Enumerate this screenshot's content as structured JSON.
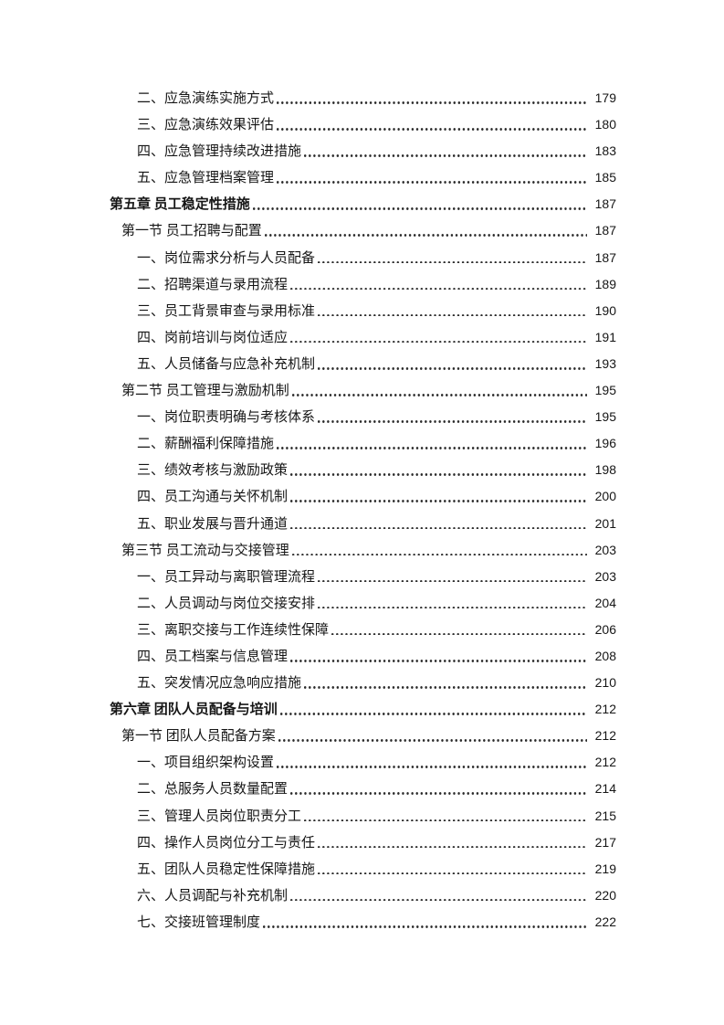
{
  "page": {
    "background_color": "#ffffff",
    "text_color": "#161616"
  },
  "toc": {
    "entries": [
      {
        "level": 3,
        "label": "二、应急演练实施方式",
        "page": "179"
      },
      {
        "level": 3,
        "label": "三、应急演练效果评估",
        "page": "180"
      },
      {
        "level": 3,
        "label": "四、应急管理持续改进措施",
        "page": "183"
      },
      {
        "level": 3,
        "label": "五、应急管理档案管理",
        "page": "185"
      },
      {
        "level": 1,
        "label": "第五章 员工稳定性措施",
        "page": "187"
      },
      {
        "level": 2,
        "label": "第一节 员工招聘与配置",
        "page": "187"
      },
      {
        "level": 3,
        "label": "一、岗位需求分析与人员配备",
        "page": "187"
      },
      {
        "level": 3,
        "label": "二、招聘渠道与录用流程",
        "page": "189"
      },
      {
        "level": 3,
        "label": "三、员工背景审查与录用标准",
        "page": "190"
      },
      {
        "level": 3,
        "label": "四、岗前培训与岗位适应",
        "page": "191"
      },
      {
        "level": 3,
        "label": "五、人员储备与应急补充机制",
        "page": "193"
      },
      {
        "level": 2,
        "label": "第二节 员工管理与激励机制",
        "page": "195"
      },
      {
        "level": 3,
        "label": "一、岗位职责明确与考核体系",
        "page": "195"
      },
      {
        "level": 3,
        "label": "二、薪酬福利保障措施",
        "page": "196"
      },
      {
        "level": 3,
        "label": "三、绩效考核与激励政策",
        "page": "198"
      },
      {
        "level": 3,
        "label": "四、员工沟通与关怀机制",
        "page": "200"
      },
      {
        "level": 3,
        "label": "五、职业发展与晋升通道",
        "page": "201"
      },
      {
        "level": 2,
        "label": "第三节 员工流动与交接管理",
        "page": "203"
      },
      {
        "level": 3,
        "label": "一、员工异动与离职管理流程",
        "page": "203"
      },
      {
        "level": 3,
        "label": "二、人员调动与岗位交接安排",
        "page": "204"
      },
      {
        "level": 3,
        "label": "三、离职交接与工作连续性保障",
        "page": "206"
      },
      {
        "level": 3,
        "label": "四、员工档案与信息管理",
        "page": "208"
      },
      {
        "level": 3,
        "label": "五、突发情况应急响应措施",
        "page": "210"
      },
      {
        "level": 1,
        "label": "第六章 团队人员配备与培训",
        "page": "212"
      },
      {
        "level": 2,
        "label": "第一节 团队人员配备方案",
        "page": "212"
      },
      {
        "level": 3,
        "label": "一、项目组织架构设置",
        "page": "212"
      },
      {
        "level": 3,
        "label": "二、总服务人员数量配置",
        "page": "214"
      },
      {
        "level": 3,
        "label": "三、管理人员岗位职责分工",
        "page": "215"
      },
      {
        "level": 3,
        "label": "四、操作人员岗位分工与责任",
        "page": "217"
      },
      {
        "level": 3,
        "label": "五、团队人员稳定性保障措施",
        "page": "219"
      },
      {
        "level": 3,
        "label": "六、人员调配与补充机制",
        "page": "220"
      },
      {
        "level": 3,
        "label": "七、交接班管理制度",
        "page": "222"
      }
    ]
  }
}
